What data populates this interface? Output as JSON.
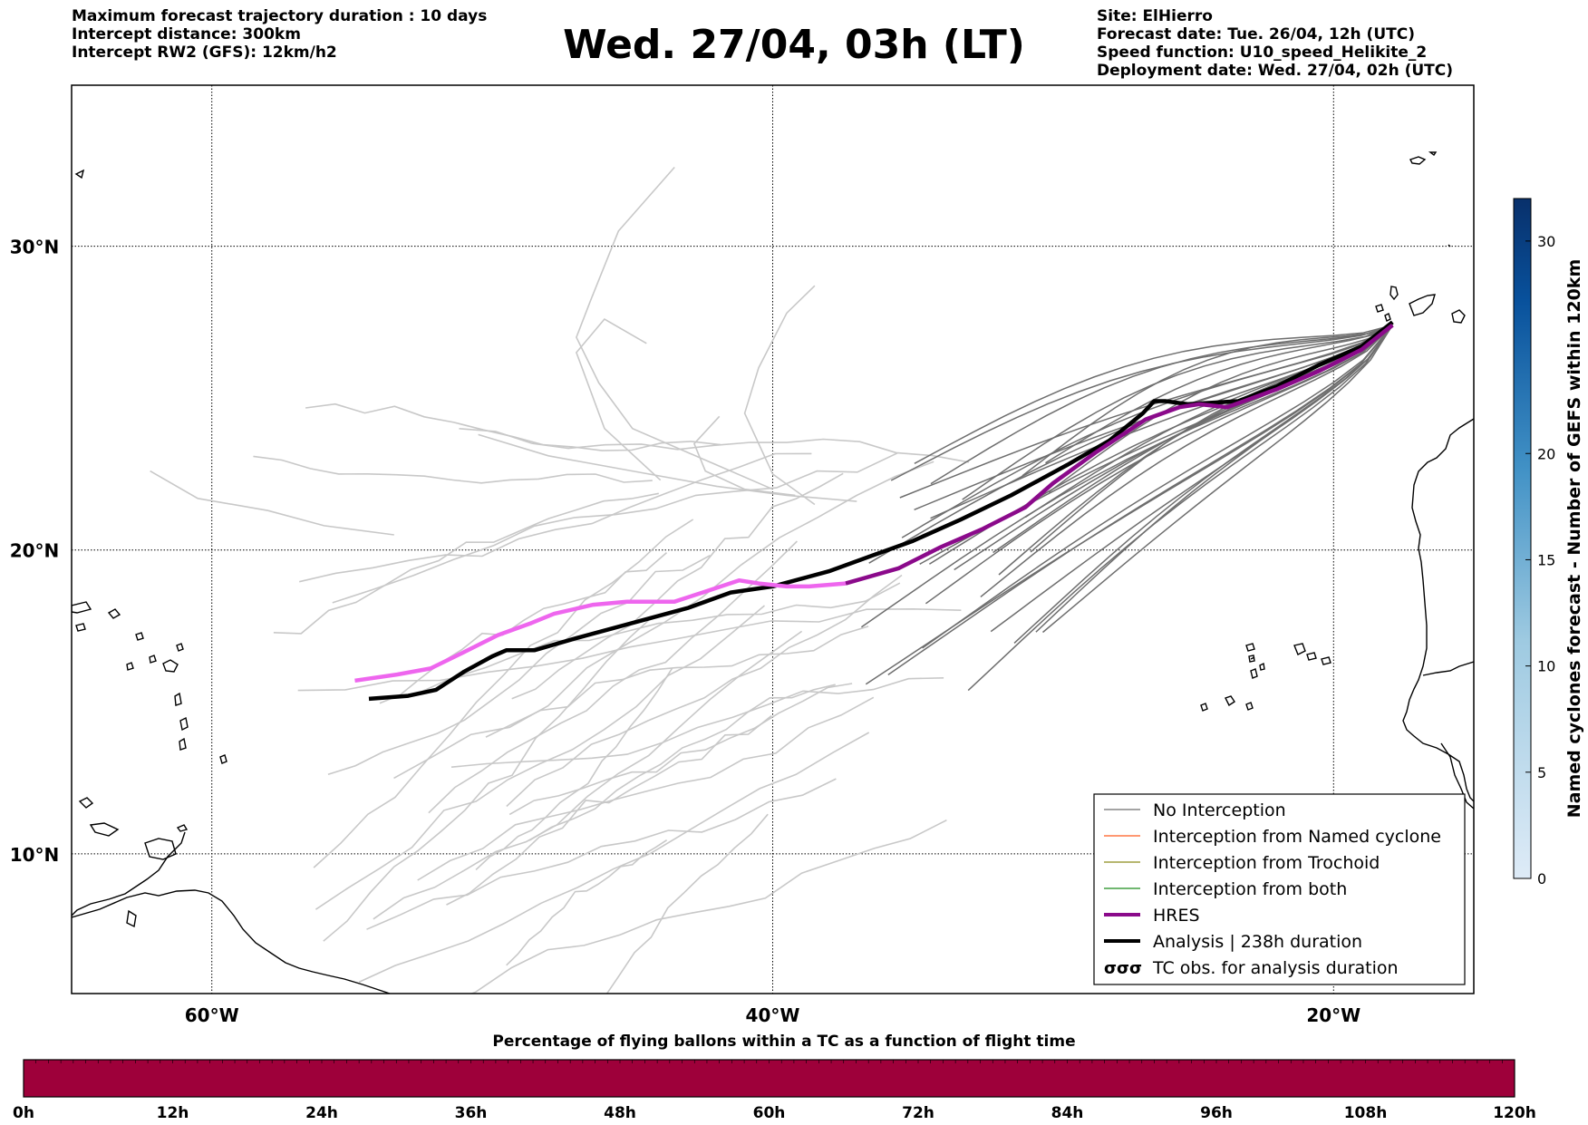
{
  "header": {
    "left_lines": [
      "Maximum forecast trajectory duration : 10 days",
      "Intercept distance: 300km",
      "Intercept RW2 (GFS):  12km/h2"
    ],
    "title": "Wed. 27/04, 03h (LT)",
    "right_lines": [
      "Site: ElHierro",
      "Forecast date: Tue. 26/04, 12h (UTC)",
      "Speed function: U10_speed_Helikite_2",
      "Deployment date: Wed. 27/04, 02h (UTC)"
    ]
  },
  "map": {
    "lat_labels": [
      "30°N",
      "20°N",
      "10°N"
    ],
    "lon_labels": [
      "60°W",
      "40°W",
      "20°W"
    ],
    "lat_values": [
      30,
      20,
      10
    ],
    "lon_values": [
      -60,
      -40,
      -20
    ],
    "extent": {
      "lon_min": -65,
      "lon_max": -15,
      "lat_min": 5.4,
      "lat_max": 35.3
    },
    "gridlines": true
  },
  "legend": {
    "items": [
      {
        "label": "No Interception",
        "color": "#6e6e6e",
        "style": "thin"
      },
      {
        "label": "Interception from Named cyclone",
        "color": "#ff5a1f",
        "style": "thin"
      },
      {
        "label": "Interception from Trochoid",
        "color": "#8c8c1a",
        "style": "thin"
      },
      {
        "label": "Interception from both",
        "color": "#1a8c1a",
        "style": "thin"
      },
      {
        "label": "HRES",
        "color": "#8b0a8b",
        "style": "thick"
      },
      {
        "label": "Analysis | 238h duration",
        "color": "#000000",
        "style": "thick"
      },
      {
        "label": "TC obs. for analysis duration",
        "color": "#000000",
        "style": "symbol"
      }
    ]
  },
  "colorbar": {
    "label": "Named cyclones forecast - Number of GEFS within 120km",
    "ticks": [
      "0",
      "5",
      "10",
      "15",
      "20",
      "30"
    ],
    "tick_values": [
      0,
      5,
      10,
      15,
      20,
      30
    ],
    "max": 32,
    "color_low": "#deebf7",
    "color_high": "#08306b"
  },
  "flight_bar": {
    "title": "Percentage of flying ballons within a TC as a function of flight time",
    "ticks": [
      "0h",
      "12h",
      "24h",
      "36h",
      "48h",
      "60h",
      "72h",
      "84h",
      "96h",
      "108h",
      "120h"
    ],
    "fill_color": "#9e003a",
    "percentages": [
      0,
      0,
      0,
      0,
      0,
      0,
      0,
      0,
      0,
      0
    ]
  },
  "chart_data": {
    "type": "line",
    "x_axis": "longitude (°)",
    "y_axis": "latitude (°)",
    "xlim": [
      -65,
      -15
    ],
    "ylim": [
      5.4,
      35.3
    ],
    "series": [
      {
        "name": "Analysis | 238h duration",
        "color": "#000000",
        "points": [
          [
            -17.9,
            27.5
          ],
          [
            -19.0,
            26.7
          ],
          [
            -20.5,
            26.1
          ],
          [
            -22.0,
            25.4
          ],
          [
            -23.4,
            24.9
          ],
          [
            -25.2,
            24.8
          ],
          [
            -26.0,
            24.9
          ],
          [
            -26.4,
            24.9
          ],
          [
            -26.8,
            24.5
          ],
          [
            -28.0,
            23.6
          ],
          [
            -29.5,
            22.8
          ],
          [
            -31.5,
            21.8
          ],
          [
            -33.3,
            21.0
          ],
          [
            -35.0,
            20.3
          ],
          [
            -36.5,
            19.8
          ],
          [
            -38.0,
            19.3
          ],
          [
            -40.0,
            18.8
          ],
          [
            -41.5,
            18.6
          ],
          [
            -43.0,
            18.1
          ],
          [
            -45.0,
            17.6
          ],
          [
            -47.0,
            17.1
          ],
          [
            -48.5,
            16.7
          ],
          [
            -49.5,
            16.7
          ],
          [
            -50.0,
            16.5
          ],
          [
            -51.0,
            16.0
          ],
          [
            -52.0,
            15.4
          ],
          [
            -53.0,
            15.2
          ],
          [
            -54.4,
            15.1
          ]
        ]
      },
      {
        "name": "HRES",
        "color": "#8b0a8b",
        "points": [
          [
            -17.9,
            27.4
          ],
          [
            -19.0,
            26.6
          ],
          [
            -20.5,
            25.9
          ],
          [
            -22.0,
            25.3
          ],
          [
            -23.8,
            24.7
          ],
          [
            -24.8,
            24.8
          ],
          [
            -25.5,
            24.7
          ],
          [
            -26.7,
            24.3
          ],
          [
            -28.5,
            23.2
          ],
          [
            -30.0,
            22.2
          ],
          [
            -31.0,
            21.4
          ],
          [
            -32.5,
            20.7
          ],
          [
            -34.0,
            20.1
          ],
          [
            -35.5,
            19.4
          ],
          [
            -37.4,
            18.9
          ]
        ]
      },
      {
        "name": "",
        "color": "#ee66ee",
        "points": [
          [
            -37.4,
            18.9
          ],
          [
            -38.7,
            18.8
          ],
          [
            -39.5,
            18.8
          ],
          [
            -40.5,
            18.9
          ],
          [
            -41.2,
            19.0
          ],
          [
            -42.5,
            18.6
          ],
          [
            -43.5,
            18.3
          ],
          [
            -45.2,
            18.3
          ],
          [
            -46.4,
            18.2
          ],
          [
            -47.8,
            17.9
          ],
          [
            -48.6,
            17.6
          ],
          [
            -49.8,
            17.2
          ],
          [
            -51.1,
            16.6
          ],
          [
            -52.2,
            16.1
          ],
          [
            -53.4,
            15.9
          ],
          [
            -54.9,
            15.7
          ]
        ]
      }
    ],
    "ensemble_count_no_interception_dark": 30,
    "ensemble_count_no_interception_light": 30
  }
}
